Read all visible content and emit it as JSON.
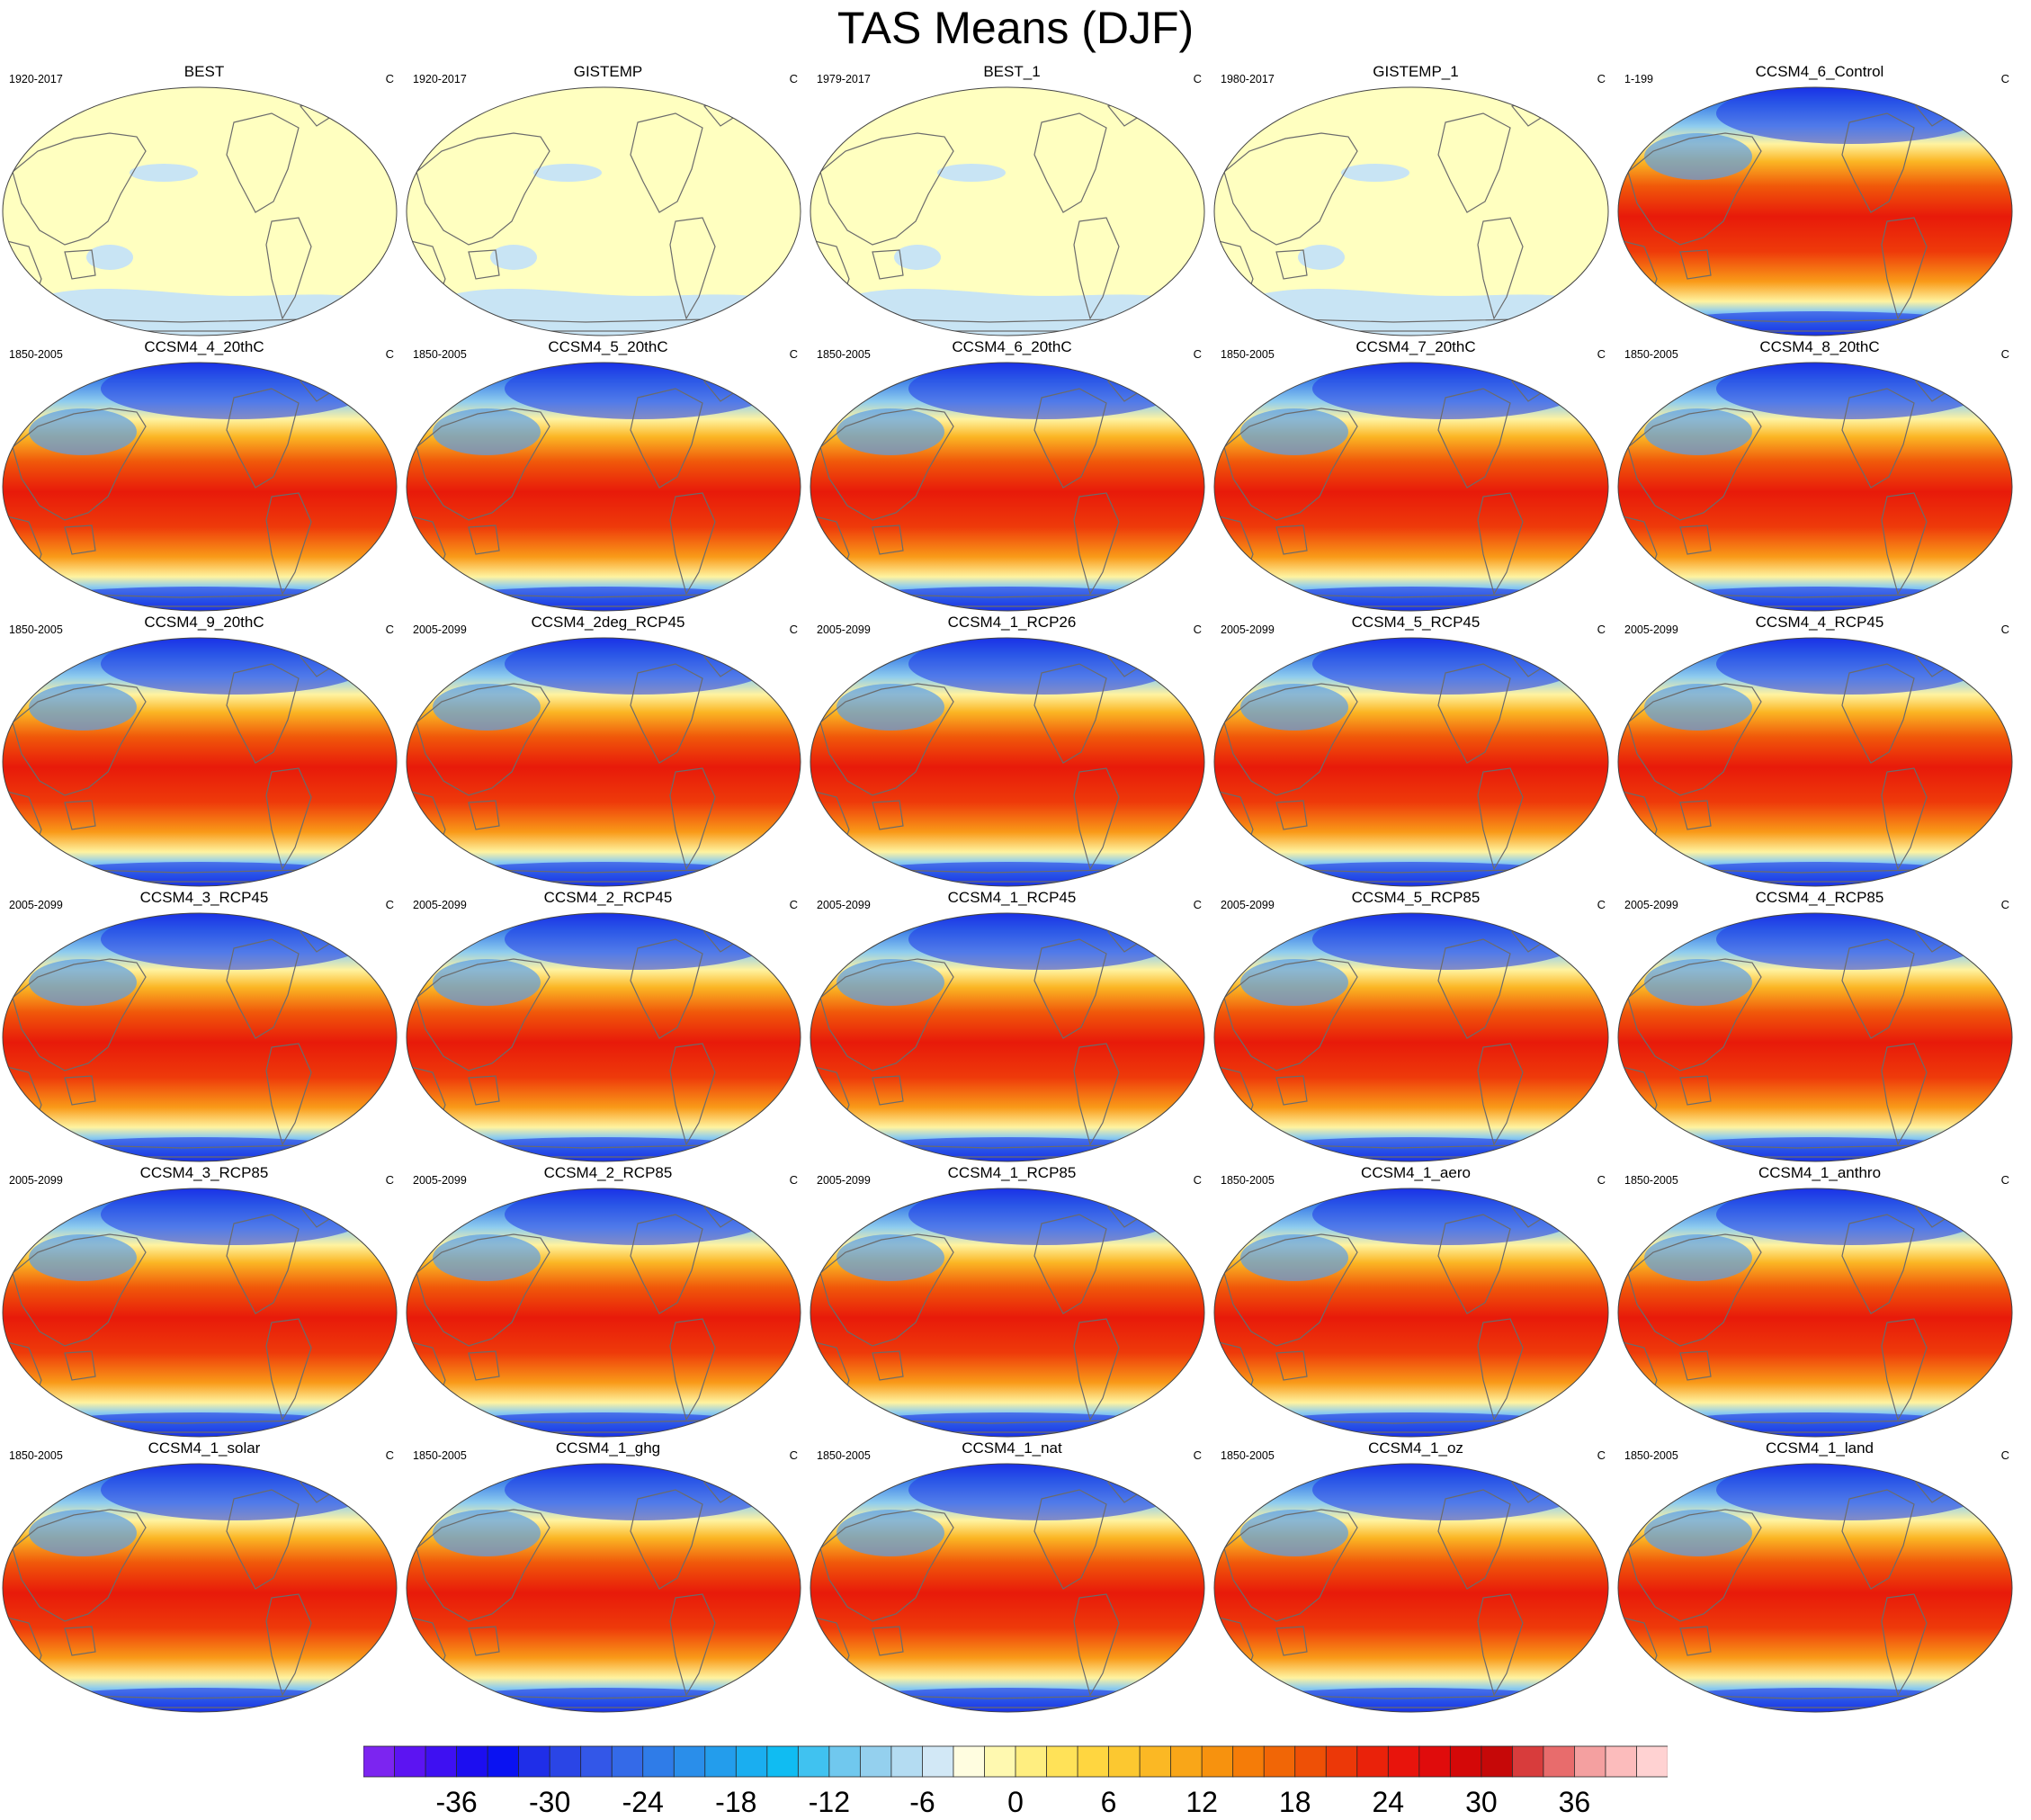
{
  "title": "TAS Means (DJF)",
  "units_label": "C",
  "colors": {
    "obs_fill": "#ffffc0",
    "obs_patch": "#c8e4f4",
    "coast": "#6b6b6b",
    "model_warm": "#ea1b0b",
    "model_polar": "#1d36e6"
  },
  "panels": [
    {
      "title": "BEST",
      "period": "1920-2017",
      "kind": "obs"
    },
    {
      "title": "GISTEMP",
      "period": "1920-2017",
      "kind": "obs"
    },
    {
      "title": "BEST_1",
      "period": "1979-2017",
      "kind": "obs"
    },
    {
      "title": "GISTEMP_1",
      "period": "1980-2017",
      "kind": "obs"
    },
    {
      "title": "CCSM4_6_Control",
      "period": "1-199",
      "kind": "model"
    },
    {
      "title": "CCSM4_4_20thC",
      "period": "1850-2005",
      "kind": "model"
    },
    {
      "title": "CCSM4_5_20thC",
      "period": "1850-2005",
      "kind": "model"
    },
    {
      "title": "CCSM4_6_20thC",
      "period": "1850-2005",
      "kind": "model"
    },
    {
      "title": "CCSM4_7_20thC",
      "period": "1850-2005",
      "kind": "model"
    },
    {
      "title": "CCSM4_8_20thC",
      "period": "1850-2005",
      "kind": "model"
    },
    {
      "title": "CCSM4_9_20thC",
      "period": "1850-2005",
      "kind": "model"
    },
    {
      "title": "CCSM4_2deg_RCP45",
      "period": "2005-2099",
      "kind": "model"
    },
    {
      "title": "CCSM4_1_RCP26",
      "period": "2005-2099",
      "kind": "model"
    },
    {
      "title": "CCSM4_5_RCP45",
      "period": "2005-2099",
      "kind": "model"
    },
    {
      "title": "CCSM4_4_RCP45",
      "period": "2005-2099",
      "kind": "model"
    },
    {
      "title": "CCSM4_3_RCP45",
      "period": "2005-2099",
      "kind": "model"
    },
    {
      "title": "CCSM4_2_RCP45",
      "period": "2005-2099",
      "kind": "model"
    },
    {
      "title": "CCSM4_1_RCP45",
      "period": "2005-2099",
      "kind": "model"
    },
    {
      "title": "CCSM4_5_RCP85",
      "period": "2005-2099",
      "kind": "model"
    },
    {
      "title": "CCSM4_4_RCP85",
      "period": "2005-2099",
      "kind": "model"
    },
    {
      "title": "CCSM4_3_RCP85",
      "period": "2005-2099",
      "kind": "model"
    },
    {
      "title": "CCSM4_2_RCP85",
      "period": "2005-2099",
      "kind": "model"
    },
    {
      "title": "CCSM4_1_RCP85",
      "period": "2005-2099",
      "kind": "model"
    },
    {
      "title": "CCSM4_1_aero",
      "period": "1850-2005",
      "kind": "model"
    },
    {
      "title": "CCSM4_1_anthro",
      "period": "1850-2005",
      "kind": "model"
    },
    {
      "title": "CCSM4_1_solar",
      "period": "1850-2005",
      "kind": "model"
    },
    {
      "title": "CCSM4_1_ghg",
      "period": "1850-2005",
      "kind": "model"
    },
    {
      "title": "CCSM4_1_nat",
      "period": "1850-2005",
      "kind": "model"
    },
    {
      "title": "CCSM4_1_oz",
      "period": "1850-2005",
      "kind": "model"
    },
    {
      "title": "CCSM4_1_land",
      "period": "1850-2005",
      "kind": "model"
    }
  ],
  "colorbar": {
    "min": -42,
    "max": 42,
    "step": 2,
    "tick_labels": [
      "-36",
      "-30",
      "-24",
      "-18",
      "-12",
      "-6",
      "0",
      "6",
      "12",
      "18",
      "24",
      "30",
      "36"
    ],
    "colors": [
      "#7c25f0",
      "#5c14f2",
      "#3e10f2",
      "#1c0ef0",
      "#0a12f2",
      "#1f2ee8",
      "#2a45e6",
      "#3357e8",
      "#346ae8",
      "#2f7ce8",
      "#2a8eea",
      "#239dec",
      "#1aaef0",
      "#10bcf2",
      "#40c2f0",
      "#70c8ee",
      "#94d0ee",
      "#b4dcf2",
      "#d2e8f6",
      "#fffde0",
      "#fff9b0",
      "#ffee80",
      "#ffe258",
      "#ffd640",
      "#fcc830",
      "#fbb824",
      "#f9a618",
      "#f7920e",
      "#f57c08",
      "#f16606",
      "#ee5006",
      "#ec3808",
      "#ea220a",
      "#e8140c",
      "#e00c0c",
      "#d40808",
      "#c60808",
      "#d83c3c",
      "#e86c6c",
      "#f4a0a0",
      "#fcbcbc",
      "#ffd2d2"
    ]
  }
}
